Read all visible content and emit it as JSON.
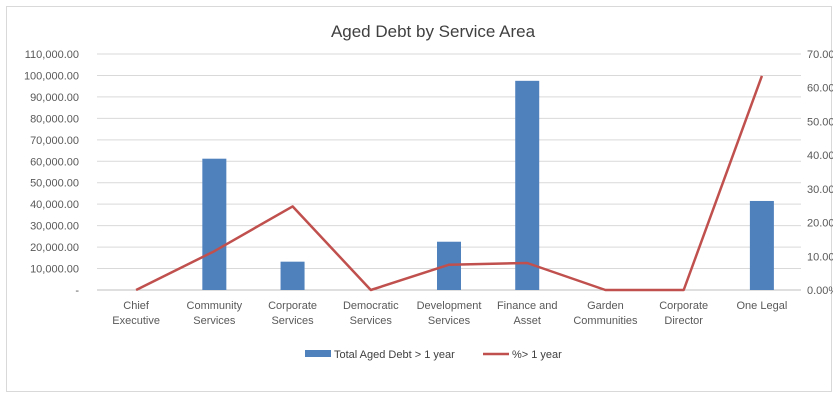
{
  "chart_data": {
    "type": "bar",
    "title": "Aged Debt by Service Area",
    "categories": [
      [
        "Chief",
        "Executive"
      ],
      [
        "Community",
        "Services"
      ],
      [
        "Corporate",
        "Services"
      ],
      [
        "Democratic",
        "Services"
      ],
      [
        "Development",
        "Services"
      ],
      [
        "Finance and",
        "Asset"
      ],
      [
        "Garden",
        "Communities"
      ],
      [
        "Corporate",
        "Director"
      ],
      [
        "One Legal"
      ]
    ],
    "series": [
      {
        "name": "Total Aged Debt > 1 year",
        "type": "bar",
        "axis": "left",
        "color": "#4f81bd",
        "values": [
          0,
          61200,
          13200,
          0,
          22500,
          97500,
          0,
          0,
          41500
        ]
      },
      {
        "name": "%> 1 year",
        "type": "line",
        "axis": "right",
        "color": "#c0504d",
        "values": [
          0,
          11.5,
          24.8,
          0,
          7.5,
          8,
          0,
          0,
          63.5
        ]
      }
    ],
    "left_axis": {
      "ylim": [
        0,
        110000
      ],
      "ticks": [
        0,
        10000,
        20000,
        30000,
        40000,
        50000,
        60000,
        70000,
        80000,
        90000,
        100000,
        110000
      ],
      "tick_labels": [
        "-",
        "10,000.00",
        "20,000.00",
        "30,000.00",
        "40,000.00",
        "50,000.00",
        "60,000.00",
        "70,000.00",
        "80,000.00",
        "90,000.00",
        "100,000.00",
        "110,000.00"
      ]
    },
    "right_axis": {
      "ylim": [
        0,
        70
      ],
      "ticks": [
        0,
        10,
        20,
        30,
        40,
        50,
        60,
        70
      ],
      "tick_labels": [
        "0.00%",
        "10.00",
        "20.00",
        "30.00",
        "40.00",
        "50.00",
        "60.00",
        "70.00"
      ]
    },
    "grid": true,
    "legend_position": "bottom"
  }
}
